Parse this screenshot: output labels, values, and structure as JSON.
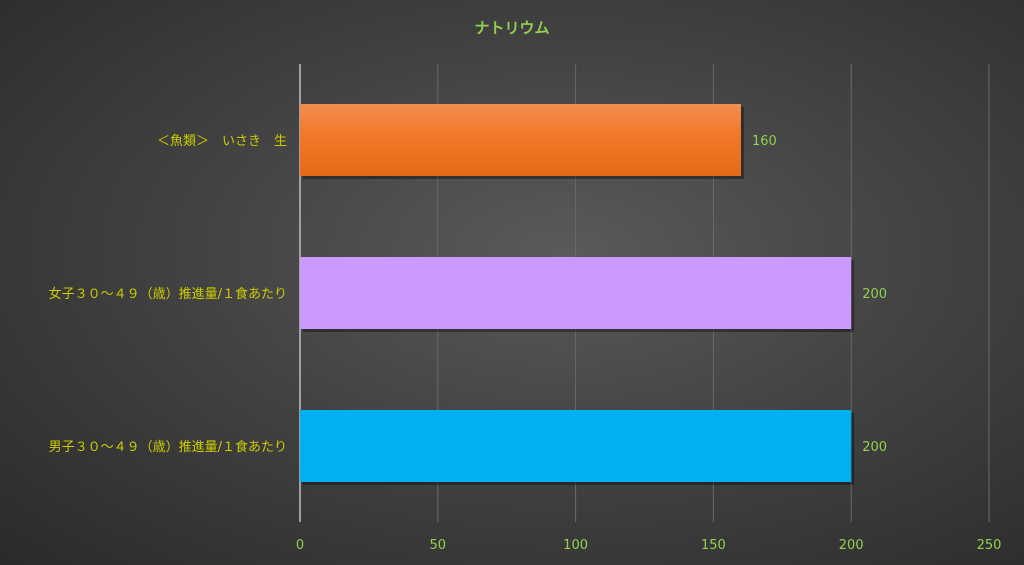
{
  "chart_data": {
    "type": "bar",
    "orientation": "horizontal",
    "title": "ナトリウム",
    "categories": [
      "＜魚類＞　いさき　生",
      "女子３０～４９（歳）推進量/１食あたり",
      "男子３０～４９（歳）推進量/１食あたり"
    ],
    "values": [
      160,
      200,
      200
    ],
    "data_labels": [
      "160",
      "200",
      "200"
    ],
    "bar_colors": [
      "#ef7a2a",
      "#cc99ff",
      "#00b0f0"
    ],
    "xlim": [
      0,
      250
    ],
    "xticks": [
      "0",
      "50",
      "100",
      "150",
      "200",
      "250"
    ],
    "grid": true,
    "xlabel": "",
    "ylabel": "",
    "title_color": "#92d050",
    "category_label_color": "#cccc00",
    "tick_label_color": "#92d050"
  }
}
